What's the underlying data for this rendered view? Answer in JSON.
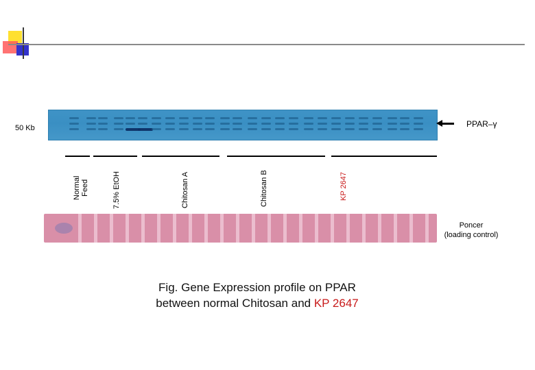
{
  "markers": {
    "size_marker": "50 Kb",
    "target_label": "PPAR–γ",
    "loading_label_line1": "Poncer",
    "loading_label_line2": "(loading control)"
  },
  "groups": [
    {
      "line1": "Normal",
      "line2": "Feed",
      "color": "#000000"
    },
    {
      "line1": "7.5% EtOH",
      "color": "#000000"
    },
    {
      "line1": "Chitosan A",
      "color": "#000000"
    },
    {
      "line1": "Chitosan B",
      "color": "#000000"
    },
    {
      "line1": "KP 2647",
      "color": "#c81a1a"
    }
  ],
  "caption": {
    "line1": "Fig. Gene Expression profile on PPAR",
    "line2_prefix": "between normal Chitosan and ",
    "line2_highlight": "KP 2647"
  },
  "colors": {
    "accent_red": "#c81a1a",
    "blot_blue": "#3f93c6",
    "blot_pink": "#d98fa8"
  }
}
